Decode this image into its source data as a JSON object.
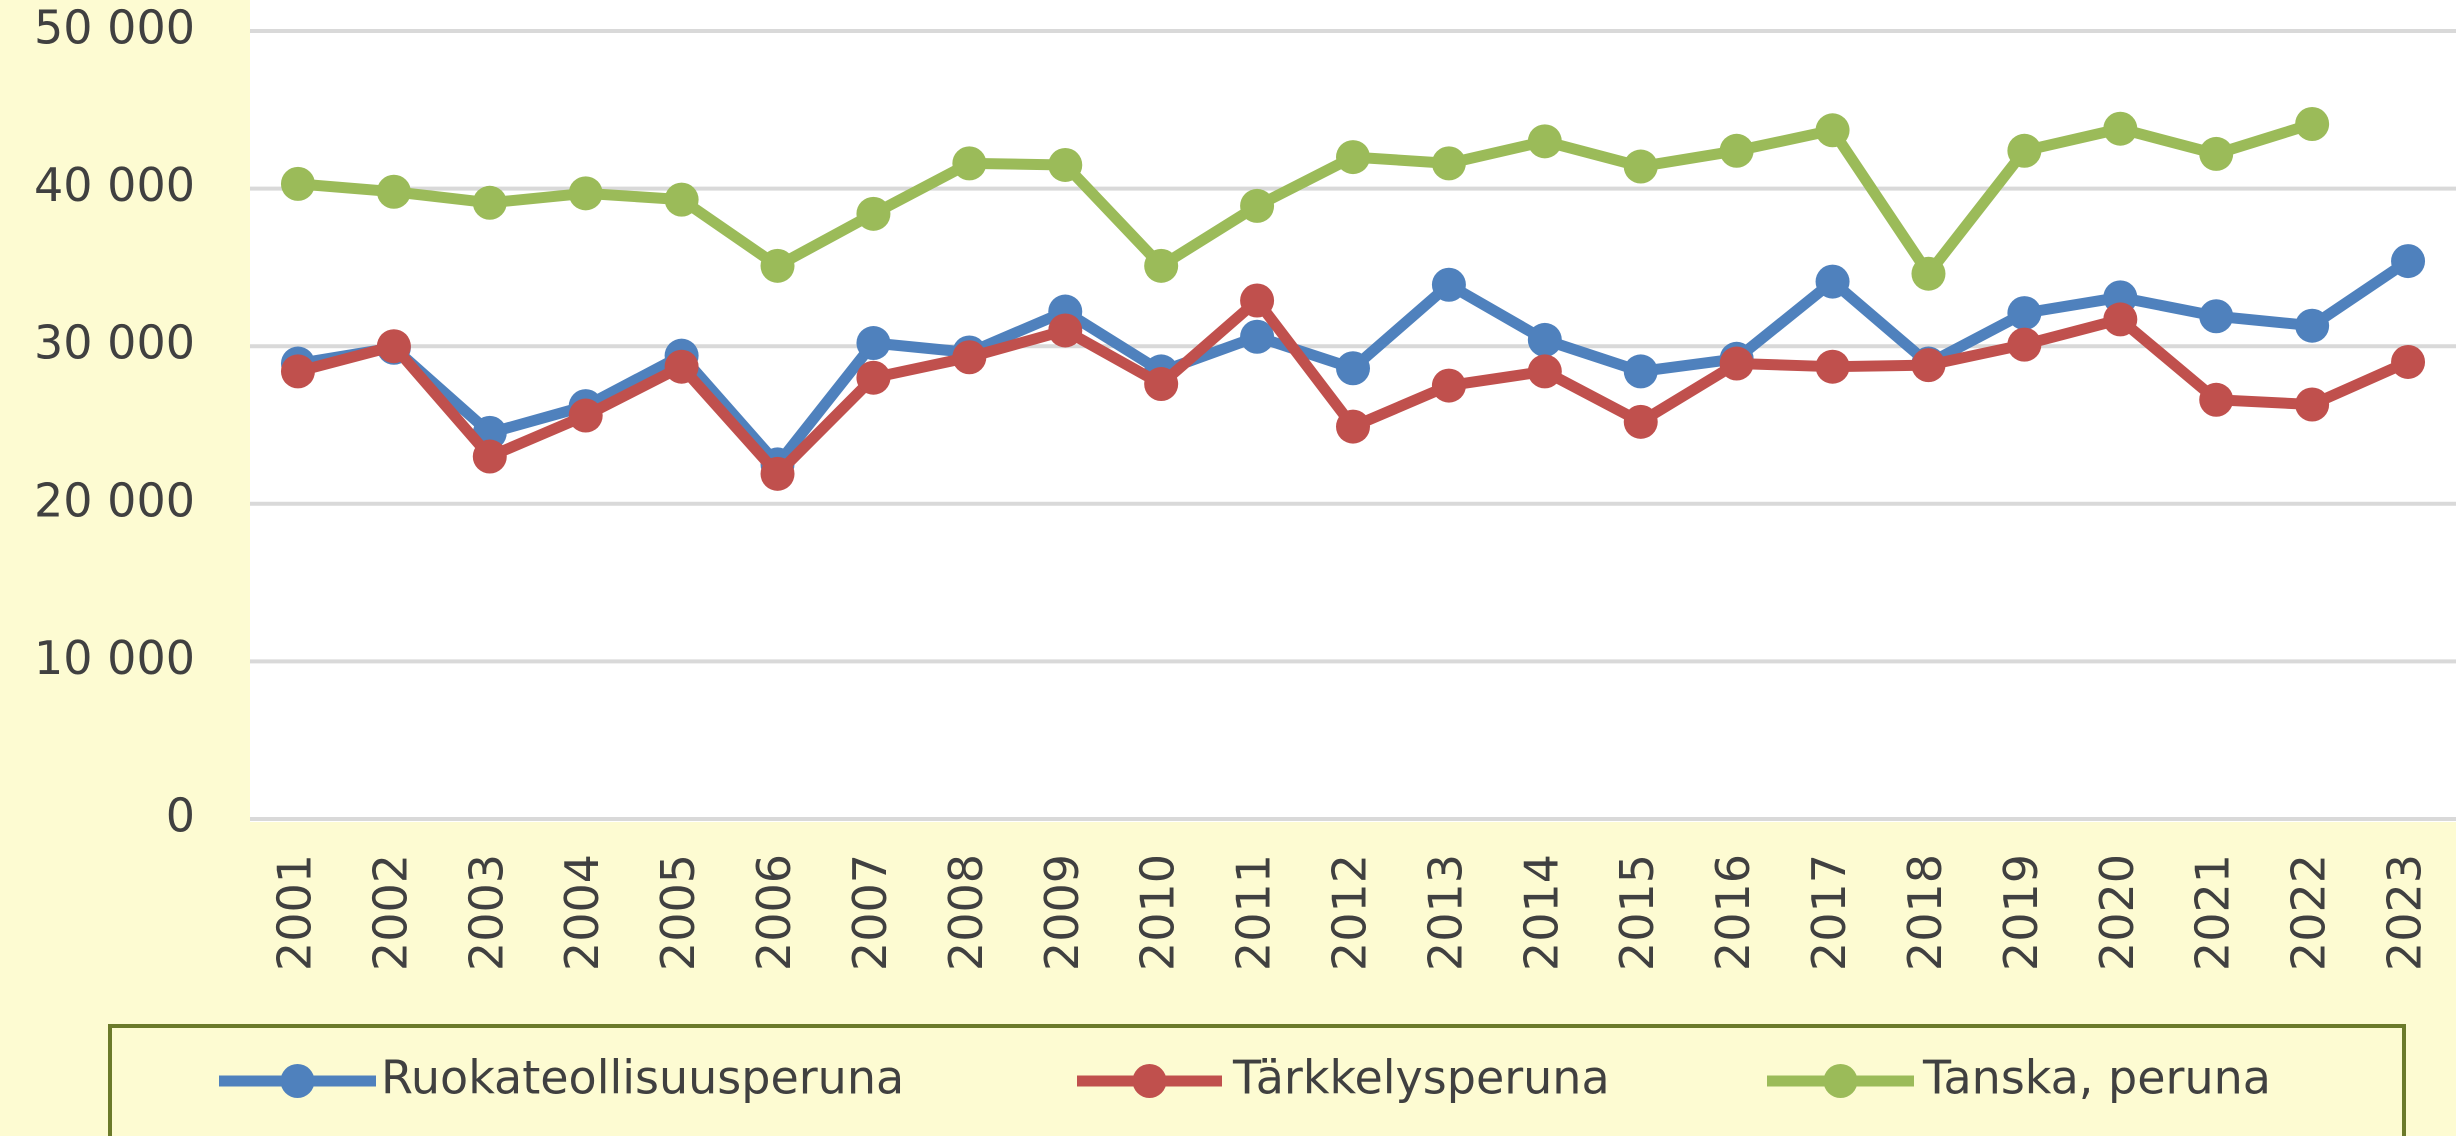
{
  "chart_data": {
    "type": "line",
    "categories": [
      "2001",
      "2002",
      "2003",
      "2004",
      "2005",
      "2006",
      "2007",
      "2008",
      "2009",
      "2010",
      "2011",
      "2012",
      "2013",
      "2014",
      "2015",
      "2016",
      "2017",
      "2018",
      "2019",
      "2020",
      "2021",
      "2022",
      "2023"
    ],
    "series": [
      {
        "name": "Ruokateollisuusperuna",
        "color": "#4f81bd",
        "values": [
          28900,
          29900,
          24500,
          26200,
          29400,
          22500,
          30200,
          29600,
          32200,
          28400,
          30600,
          28600,
          33900,
          30400,
          28400,
          29200,
          34100,
          28900,
          32100,
          33100,
          31900,
          31300,
          35400
        ]
      },
      {
        "name": "Tärkkelysperuna",
        "color": "#c0504d",
        "values": [
          28400,
          30000,
          23000,
          25600,
          28700,
          21900,
          28000,
          29300,
          31000,
          27600,
          32900,
          24900,
          27500,
          28400,
          25200,
          28900,
          28700,
          28800,
          30100,
          31700,
          26600,
          26300,
          29000
        ]
      },
      {
        "name": "Tanska, peruna",
        "color": "#9bbb59",
        "values": [
          40300,
          39800,
          39100,
          39700,
          39300,
          35100,
          38400,
          41600,
          41500,
          35100,
          38900,
          42000,
          41600,
          43000,
          41400,
          42400,
          43700,
          34600,
          42400,
          43800,
          42200,
          44100,
          null
        ]
      }
    ],
    "ylim": [
      0,
      50000
    ],
    "yticks": [
      0,
      {
        "value": 10000,
        "label": "10 000"
      },
      {
        "value": 20000,
        "label": "20 000"
      },
      {
        "value": 30000,
        "label": "30 000"
      },
      {
        "value": 40000,
        "label": "40 000"
      },
      {
        "value": 50000,
        "label": "50 000"
      }
    ],
    "grid": true,
    "legend": "bottom"
  }
}
